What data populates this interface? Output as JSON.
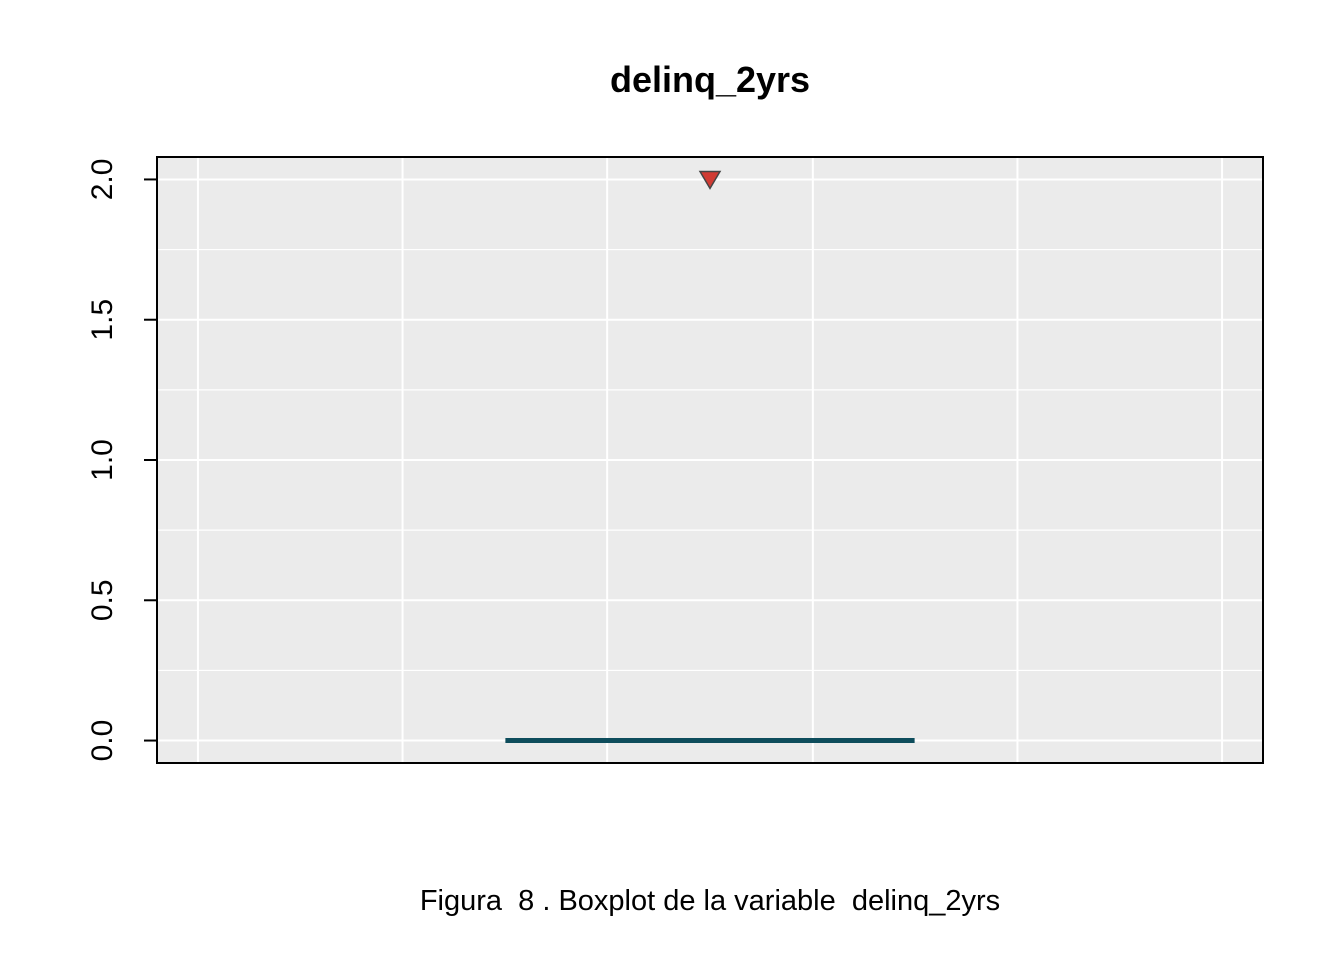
{
  "chart_data": {
    "type": "boxplot",
    "title": "delinq_2yrs",
    "xlabel": "",
    "ylabel": "",
    "caption": "Figura  8 . Boxplot de la variable  delinq_2yrs",
    "ylim": [
      -0.08,
      2.08
    ],
    "yticks": [
      0.0,
      0.5,
      1.0,
      1.5,
      2.0
    ],
    "ytick_labels": [
      "0.0",
      "0.5",
      "1.0",
      "1.5",
      "2.0"
    ],
    "grid": true,
    "box": {
      "min": 0,
      "q1": 0,
      "median": 0,
      "q3": 0,
      "max": 0,
      "outliers": [
        2
      ]
    },
    "colors": {
      "panel_background": "#ebebeb",
      "grid": "#ffffff",
      "box": "#0e4d5c",
      "outlier_fill": "#d03b33",
      "outlier_edge": "#444444"
    },
    "outlier_marker": "triangle-down-icon"
  }
}
